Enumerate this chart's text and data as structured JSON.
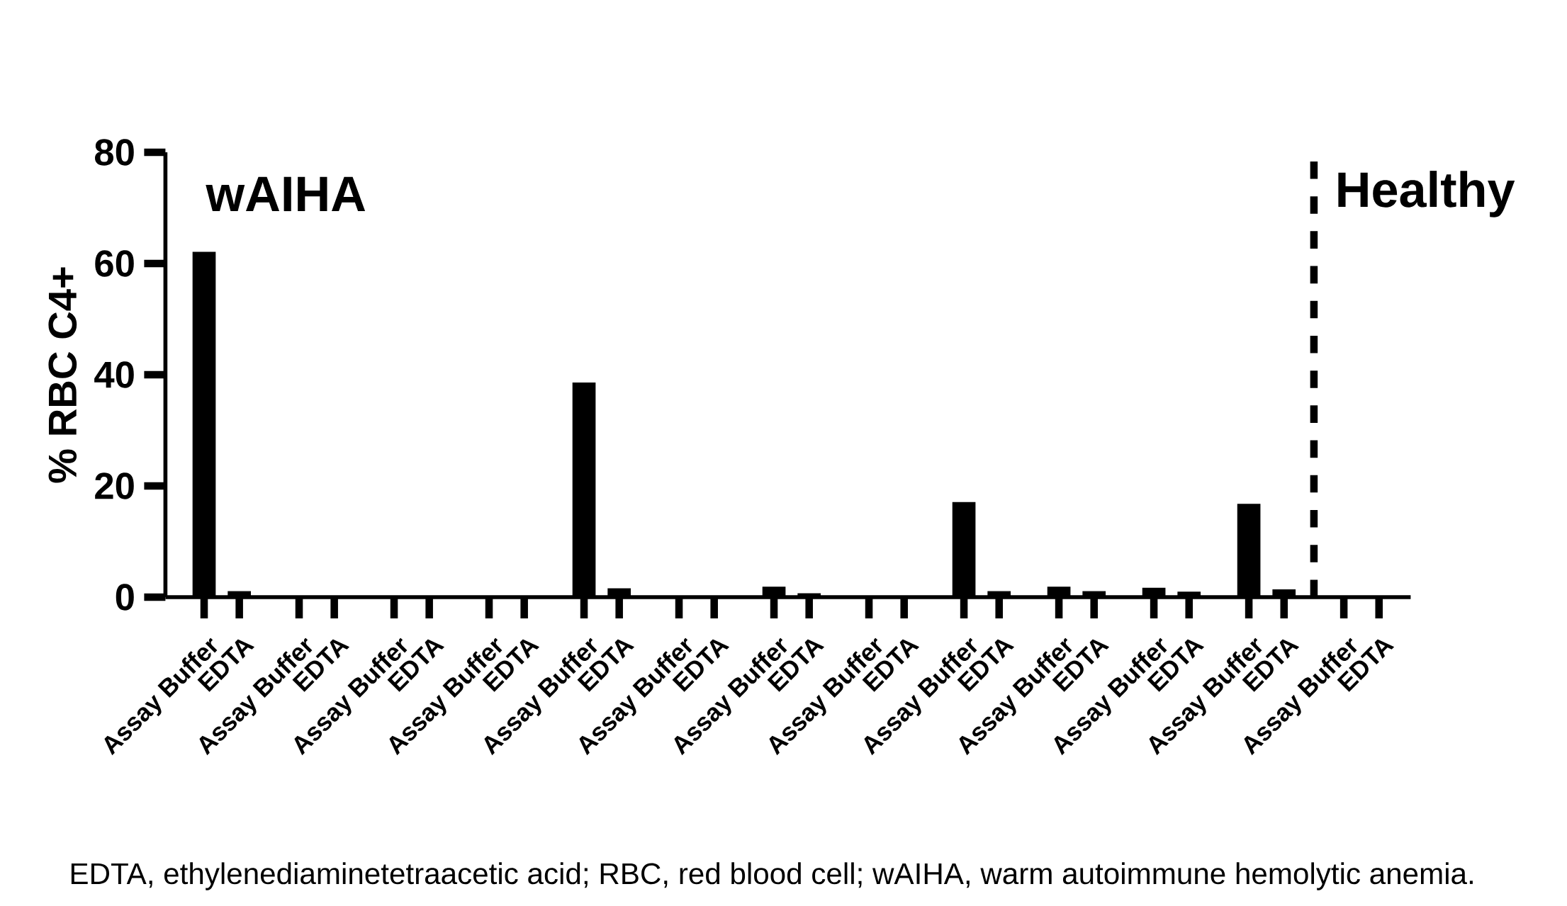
{
  "chart_data": {
    "type": "bar",
    "ylabel": "% RBC C4+",
    "categories": [
      "Assay Buffer",
      "EDTA",
      "Assay Buffer",
      "EDTA",
      "Assay Buffer",
      "EDTA",
      "Assay Buffer",
      "EDTA",
      "Assay Buffer",
      "EDTA",
      "Assay Buffer",
      "EDTA",
      "Assay Buffer",
      "EDTA",
      "Assay Buffer",
      "EDTA",
      "Assay Buffer",
      "EDTA",
      "Assay Buffer",
      "EDTA",
      "Assay Buffer",
      "EDTA",
      "Assay Buffer",
      "EDTA",
      "Assay Buffer",
      "EDTA"
    ],
    "values": [
      62,
      1,
      0,
      0,
      0,
      0,
      0,
      0,
      38.5,
      1.5,
      0,
      0,
      1.8,
      0.6,
      0,
      0,
      17,
      1,
      1.8,
      1,
      1.6,
      0.9,
      16.7,
      1.3,
      0,
      0
    ],
    "color": "#000000",
    "ylim": [
      0,
      80
    ],
    "yticks": [
      0,
      20,
      40,
      60,
      80
    ],
    "annotations": [
      "wAIHA",
      "Healthy",
      "EDTA, ethylenediaminetetraacetic acid; RBC, red blood cell; wAIHA, warm autoimmune hemolytic anemia."
    ]
  }
}
